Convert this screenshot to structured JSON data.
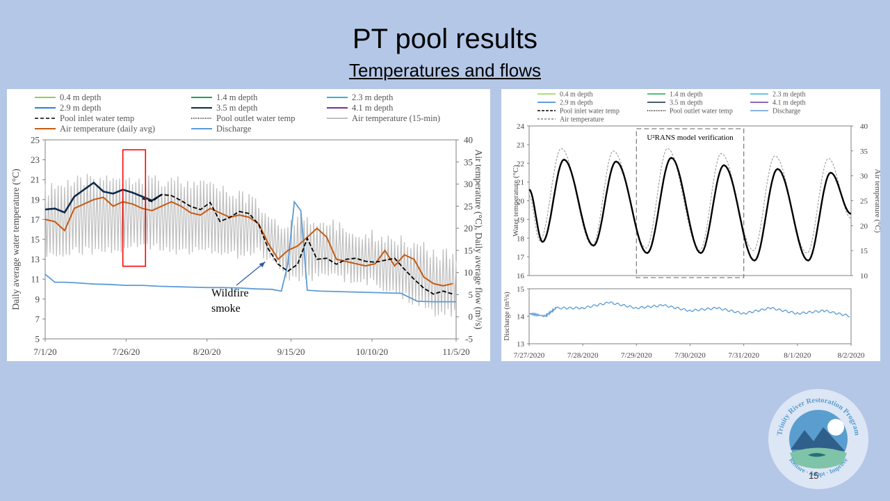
{
  "slide": {
    "title": "PT pool results",
    "subtitle": "Temperatures and flows",
    "page_number": "15",
    "logo_text_top": "Trinity River Restoration Program",
    "logo_text_bottom": "Restore · Adapt · Improve"
  },
  "colors": {
    "background": "#b4c7e7",
    "d04": "#8fd14f",
    "d14": "#1aa35a",
    "d23": "#2bb6d2",
    "d29": "#2e7fcf",
    "d35": "#0d2a4a",
    "d41": "#7030a0",
    "inlet": "#000000",
    "outlet": "#000000",
    "air15": "#c0c0c0",
    "airavg": "#c55a11",
    "discharge": "#5b9bd5",
    "highlight": "#ff0000"
  },
  "chart_data": [
    {
      "type": "line",
      "ylabel": "Daily average water temperature (°C)",
      "y2label": "Air temperature (°C), Daily average flow (m³/s)",
      "ylim": [
        5,
        25
      ],
      "y2lim": [
        -5,
        40
      ],
      "yticks": [
        "5",
        "7",
        "9",
        "11",
        "13",
        "15",
        "17",
        "19",
        "21",
        "23",
        "25"
      ],
      "y2ticks": [
        "-5",
        "0",
        "5",
        "10",
        "15",
        "20",
        "25",
        "30",
        "35",
        "40"
      ],
      "xlim": [
        0,
        127
      ],
      "x_tick_positions": [
        0,
        25,
        50,
        76,
        101,
        127
      ],
      "xticks": [
        "7/1/20",
        "7/26/20",
        "8/20/20",
        "9/15/20",
        "10/10/20",
        "11/5/20"
      ],
      "legend": [
        {
          "key": "d04",
          "label": "0.4 m depth",
          "style": "solid"
        },
        {
          "key": "d14",
          "label": "1.4 m depth",
          "style": "solid"
        },
        {
          "key": "d23",
          "label": "2.3 m depth",
          "style": "solid"
        },
        {
          "key": "d29",
          "label": "2.9 m depth",
          "style": "solid"
        },
        {
          "key": "d35",
          "label": "3.5 m depth",
          "style": "solid"
        },
        {
          "key": "d41",
          "label": "4.1 m depth",
          "style": "solid"
        },
        {
          "key": "inlet",
          "label": "Pool inlet water temp",
          "style": "dashed"
        },
        {
          "key": "outlet",
          "label": "Pool outlet water temp",
          "style": "dotted"
        },
        {
          "key": "air15",
          "label": "Air temperature (15-min)",
          "style": "solid"
        },
        {
          "key": "airavg",
          "label": "Air temperature (daily avg)",
          "style": "solid"
        },
        {
          "key": "discharge",
          "label": "Discharge",
          "style": "solid"
        }
      ],
      "annotation": {
        "text_line1": "Wildfire",
        "text_line2": "smoke",
        "points_to_x": 68,
        "points_to_y": 13.3
      },
      "highlight_box": {
        "x_start": 24,
        "x_end": 31,
        "y_low": 12.3,
        "y_high": 24.0
      },
      "series": [
        {
          "key": "depth_water_temp",
          "x": [
            0,
            3,
            6,
            9,
            12,
            15,
            18,
            21,
            24,
            27,
            30,
            33,
            36
          ],
          "values": [
            18.0,
            18.1,
            17.7,
            19.3,
            20.0,
            20.7,
            19.8,
            19.6,
            20.0,
            19.7,
            19.3,
            18.9,
            19.5
          ]
        },
        {
          "key": "inlet",
          "x": [
            30,
            33,
            36,
            39,
            42,
            45,
            48,
            51,
            54,
            57,
            60,
            63,
            66,
            69,
            72,
            75,
            78,
            81,
            84,
            87,
            90,
            93,
            96,
            99,
            102,
            105,
            108,
            111,
            114,
            117,
            120,
            123,
            126
          ],
          "values": [
            19.1,
            18.8,
            19.5,
            19.4,
            18.9,
            18.3,
            18.0,
            18.7,
            16.8,
            17.2,
            17.8,
            17.6,
            16.5,
            14.0,
            12.5,
            11.8,
            12.5,
            15.1,
            13.0,
            13.1,
            12.5,
            13.0,
            13.1,
            12.8,
            12.7,
            12.9,
            13.1,
            12.0,
            11.0,
            10.1,
            9.5,
            9.8,
            9.5
          ]
        },
        {
          "key": "airavg",
          "x": [
            0,
            3,
            6,
            9,
            12,
            15,
            18,
            21,
            24,
            27,
            30,
            33,
            36,
            39,
            42,
            45,
            48,
            51,
            54,
            57,
            60,
            63,
            66,
            69,
            72,
            75,
            78,
            81,
            84,
            87,
            90,
            93,
            96,
            99,
            102,
            105,
            108,
            111,
            114,
            117,
            120,
            123,
            126
          ],
          "values": [
            22.0,
            21.5,
            19.5,
            24.5,
            25.5,
            26.5,
            27.0,
            25.0,
            26.0,
            25.5,
            24.5,
            24.0,
            25.0,
            26.0,
            25.0,
            23.5,
            23.0,
            24.5,
            23.5,
            22.5,
            23.0,
            22.5,
            21.0,
            16.5,
            13.0,
            15.0,
            16.0,
            18.0,
            20.0,
            18.0,
            13.0,
            12.5,
            12.0,
            11.5,
            12.0,
            15.0,
            11.5,
            14.0,
            13.0,
            9.0,
            7.5,
            7.0,
            7.5
          ]
        },
        {
          "key": "discharge",
          "x": [
            0,
            3,
            6,
            9,
            15,
            20,
            25,
            30,
            35,
            40,
            45,
            50,
            55,
            60,
            65,
            70,
            73,
            75,
            77,
            79,
            81,
            85,
            90,
            95,
            100,
            105,
            110,
            115,
            120,
            127
          ],
          "values": [
            9.6,
            7.8,
            7.8,
            7.7,
            7.4,
            7.3,
            7.1,
            7.1,
            6.9,
            6.8,
            6.7,
            6.6,
            6.6,
            6.5,
            6.3,
            6.2,
            5.8,
            12.0,
            26.0,
            24.0,
            6.0,
            5.8,
            5.7,
            5.6,
            5.5,
            5.4,
            5.3,
            3.5,
            3.4,
            3.4
          ]
        }
      ],
      "air15_envelope": {
        "x": [
          0,
          10,
          20,
          30,
          40,
          50,
          60,
          65,
          70,
          75,
          80,
          90,
          100,
          110,
          115,
          120,
          127
        ],
        "high": [
          30,
          32,
          33,
          33,
          32,
          31,
          29,
          27,
          24,
          22,
          24,
          22,
          20,
          19,
          18,
          16,
          15
        ],
        "low": [
          13,
          14,
          14,
          15,
          14,
          14,
          13,
          14,
          12,
          7,
          8,
          8,
          7,
          4,
          2,
          0,
          0
        ]
      }
    },
    {
      "type": "line",
      "annotation": "U²RANS model verification",
      "ylabel": "Water temperature (°C)",
      "y2label": "Air temperature (°C)",
      "ylim": [
        16,
        24
      ],
      "y2lim": [
        10,
        40
      ],
      "yticks": [
        "16",
        "17",
        "18",
        "19",
        "20",
        "21",
        "22",
        "23",
        "24"
      ],
      "y2ticks": [
        "10",
        "15",
        "20",
        "25",
        "30",
        "35",
        "40"
      ],
      "xlim": [
        0,
        6
      ],
      "xticks": [
        "7/27/2020",
        "7/28/2020",
        "7/29/2020",
        "7/30/2020",
        "7/31/2020",
        "8/1/2020",
        "8/2/2020"
      ],
      "legend": [
        {
          "key": "d04",
          "label": "0.4 m depth",
          "style": "solid"
        },
        {
          "key": "d14",
          "label": "1.4 m depth",
          "style": "solid"
        },
        {
          "key": "d23",
          "label": "2.3 m depth",
          "style": "solid"
        },
        {
          "key": "d29",
          "label": "2.9 m depth",
          "style": "solid"
        },
        {
          "key": "d35",
          "label": "3.5 m depth",
          "style": "solid"
        },
        {
          "key": "d41",
          "label": "4.1 m depth",
          "style": "solid"
        },
        {
          "key": "inlet",
          "label": "Pool inlet water temp",
          "style": "dashed"
        },
        {
          "key": "outlet",
          "label": "Pool outlet water temp",
          "style": "dotted"
        },
        {
          "key": "discharge",
          "label": "Discharge",
          "style": "solid"
        },
        {
          "key": "air",
          "label": "Air temperature",
          "style": "dashed-gray"
        }
      ],
      "verification_window": {
        "x_start": 2,
        "x_end": 4
      },
      "water_extrema": {
        "x": [
          0,
          0.25,
          0.65,
          1.2,
          1.62,
          2.2,
          2.65,
          3.2,
          3.63,
          4.2,
          4.63,
          5.2,
          5.62,
          6
        ],
        "values": [
          20.6,
          17.8,
          22.2,
          17.6,
          22.1,
          17.2,
          22.3,
          17.2,
          21.9,
          16.8,
          21.7,
          16.8,
          21.5,
          19.3
        ]
      },
      "air_extrema": {
        "x": [
          0,
          0.2,
          0.6,
          1.18,
          1.57,
          2.18,
          2.58,
          3.18,
          3.58,
          4.18,
          4.58,
          5.18,
          5.58,
          6
        ],
        "values": [
          26,
          17,
          35.5,
          16,
          35,
          15.5,
          35.5,
          15,
          34.5,
          15,
          34,
          14.5,
          33.5,
          21.5
        ]
      },
      "discharge_panel": {
        "ylabel": "Discharge (m³/s)",
        "ylim": [
          13,
          15
        ],
        "yticks": [
          "13",
          "14",
          "15"
        ],
        "x": [
          0,
          0.3,
          0.5,
          1,
          1.5,
          2,
          2.5,
          3,
          3.5,
          4,
          4.5,
          5,
          5.5,
          6
        ],
        "values": [
          14.1,
          14.0,
          14.3,
          14.3,
          14.5,
          14.3,
          14.4,
          14.2,
          14.3,
          14.1,
          14.3,
          14.1,
          14.2,
          14.0
        ]
      }
    }
  ]
}
